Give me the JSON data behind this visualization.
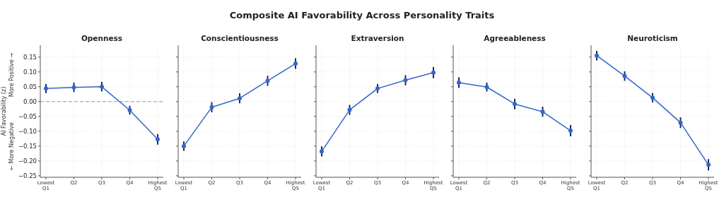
{
  "chart_data": [
    {
      "type": "line",
      "title": "Openness",
      "ylabel": "AI Favorability (z)",
      "annotations": [
        "Composite AI Favorability Across Personality Traits",
        "More Positive →",
        "← More Negative"
      ],
      "categories": [
        "Lowest\nQ1",
        "Q2",
        "Q3",
        "Q4",
        "Highest\nQ5"
      ],
      "series": [
        {
          "color": "#3366cc",
          "values": [
            0.044,
            0.048,
            0.05,
            -0.029,
            -0.127
          ],
          "errors": [
            0.015,
            0.016,
            0.016,
            0.015,
            0.018
          ]
        }
      ],
      "ylim": [
        -0.255,
        0.19
      ],
      "yticks": [
        {
          "value": -0.25,
          "label": "−0.25"
        },
        {
          "value": -0.2,
          "label": "−0.20"
        },
        {
          "value": -0.15,
          "label": "−0.15"
        },
        {
          "value": -0.1,
          "label": "−0.10"
        },
        {
          "value": -0.05,
          "label": "−0.05"
        },
        {
          "value": 0,
          "label": "0.00"
        },
        {
          "value": 0.05,
          "label": "0.05"
        },
        {
          "value": 0.1,
          "label": "0.10"
        },
        {
          "value": 0.15,
          "label": "0.15"
        }
      ],
      "ref_lines": [
        {
          "axis": "y",
          "value": 0,
          "color": "#999999",
          "line_style": "dashed"
        }
      ],
      "grid": true,
      "marker": "circle",
      "line_style": "solid"
    },
    {
      "type": "line",
      "title": "Conscientiousness",
      "categories": [
        "Lowest\nQ1",
        "Q2",
        "Q3",
        "Q4",
        "Highest\nQ5"
      ],
      "series": [
        {
          "color": "#3366cc",
          "values": [
            -0.15,
            -0.019,
            0.011,
            0.07,
            0.128
          ],
          "errors": [
            0.016,
            0.017,
            0.017,
            0.017,
            0.018
          ]
        }
      ],
      "ylim": [
        -0.255,
        0.19
      ],
      "yticks": [
        {
          "value": -0.25,
          "label": null
        },
        {
          "value": -0.2,
          "label": null
        },
        {
          "value": -0.15,
          "label": null
        },
        {
          "value": -0.1,
          "label": null
        },
        {
          "value": -0.05,
          "label": null
        },
        {
          "value": 0,
          "label": null
        },
        {
          "value": 0.05,
          "label": null
        },
        {
          "value": 0.1,
          "label": null
        },
        {
          "value": 0.15,
          "label": null
        }
      ],
      "tick_labels": "x",
      "grid": true,
      "marker": "circle",
      "line_style": "solid"
    },
    {
      "type": "line",
      "title": "Extraversion",
      "categories": [
        "Lowest\nQ1",
        "Q2",
        "Q3",
        "Q4",
        "Highest\nQ5"
      ],
      "series": [
        {
          "color": "#3366cc",
          "values": [
            -0.168,
            -0.028,
            0.044,
            0.072,
            0.098
          ],
          "errors": [
            0.017,
            0.017,
            0.015,
            0.017,
            0.019
          ]
        }
      ],
      "ylim": [
        -0.255,
        0.19
      ],
      "yticks": [
        {
          "value": -0.25,
          "label": null
        },
        {
          "value": -0.2,
          "label": null
        },
        {
          "value": -0.15,
          "label": null
        },
        {
          "value": -0.1,
          "label": null
        },
        {
          "value": -0.05,
          "label": null
        },
        {
          "value": 0,
          "label": null
        },
        {
          "value": 0.05,
          "label": null
        },
        {
          "value": 0.1,
          "label": null
        },
        {
          "value": 0.15,
          "label": null
        }
      ],
      "tick_labels": "x",
      "grid": true,
      "marker": "circle",
      "line_style": "solid"
    },
    {
      "type": "line",
      "title": "Agreeableness",
      "categories": [
        "Lowest\nQ1",
        "Q2",
        "Q3",
        "Q4",
        "Highest\nQ5"
      ],
      "series": [
        {
          "color": "#3366cc",
          "values": [
            0.064,
            0.049,
            -0.008,
            -0.034,
            -0.098
          ],
          "errors": [
            0.018,
            0.015,
            0.018,
            0.017,
            0.019
          ]
        }
      ],
      "ylim": [
        -0.255,
        0.19
      ],
      "yticks": [
        {
          "value": -0.25,
          "label": null
        },
        {
          "value": -0.2,
          "label": null
        },
        {
          "value": -0.15,
          "label": null
        },
        {
          "value": -0.1,
          "label": null
        },
        {
          "value": -0.05,
          "label": null
        },
        {
          "value": 0,
          "label": null
        },
        {
          "value": 0.05,
          "label": null
        },
        {
          "value": 0.1,
          "label": null
        },
        {
          "value": 0.15,
          "label": null
        }
      ],
      "tick_labels": "x",
      "grid": true,
      "marker": "circle",
      "line_style": "solid"
    },
    {
      "type": "line",
      "title": "Neuroticism",
      "categories": [
        "Lowest\nQ1",
        "Q2",
        "Q3",
        "Q4",
        "Highest\nQ5"
      ],
      "series": [
        {
          "color": "#3366cc",
          "values": [
            0.155,
            0.086,
            0.013,
            -0.071,
            -0.213
          ],
          "errors": [
            0.016,
            0.016,
            0.016,
            0.018,
            0.019
          ]
        }
      ],
      "ylim": [
        -0.255,
        0.19
      ],
      "yticks": [
        {
          "value": -0.25,
          "label": null
        },
        {
          "value": -0.2,
          "label": null
        },
        {
          "value": -0.15,
          "label": null
        },
        {
          "value": -0.1,
          "label": null
        },
        {
          "value": -0.05,
          "label": null
        },
        {
          "value": 0,
          "label": null
        },
        {
          "value": 0.05,
          "label": null
        },
        {
          "value": 0.1,
          "label": null
        },
        {
          "value": 0.15,
          "label": null
        }
      ],
      "tick_labels": "x",
      "grid": true,
      "marker": "circle",
      "line_style": "solid"
    }
  ]
}
